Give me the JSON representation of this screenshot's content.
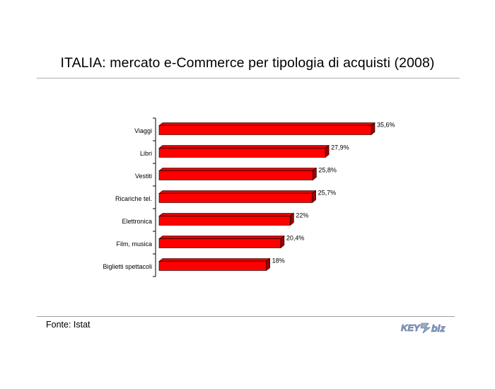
{
  "header": {
    "title": "ITALIA: mercato e-Commerce per tipologia di acquisti (2008)"
  },
  "footer": {
    "source": "Fonte: Istat",
    "logo_text": "KEY4biz"
  },
  "colors": {
    "bar": "#ff0000",
    "bar_top": "#e00000",
    "bar_side": "#a00000"
  },
  "chart_data": {
    "type": "bar",
    "orientation": "horizontal",
    "title": "ITALIA: mercato e-Commerce per tipologia di acquisti (2008)",
    "xlabel": "",
    "ylabel": "",
    "categories": [
      "Viaggi",
      "Libri",
      "Vestiti",
      "Ricariche tel.",
      "Elettronica",
      "Film, musica",
      "Biglietti spettacoli"
    ],
    "values": [
      35.6,
      27.9,
      25.8,
      25.7,
      22,
      20.4,
      18
    ],
    "value_labels": [
      "35,6%",
      "27,9%",
      "25,8%",
      "25,7%",
      "22%",
      "20,4%",
      "18%"
    ],
    "xlim": [
      0,
      36
    ],
    "grid": false,
    "legend": "none"
  }
}
